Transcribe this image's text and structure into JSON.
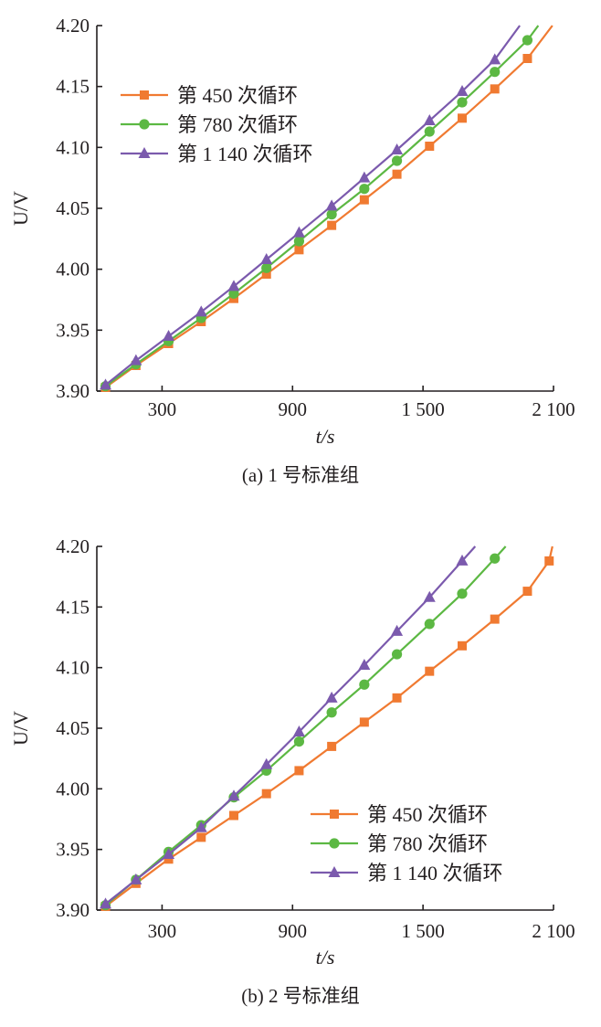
{
  "chart_data": [
    {
      "type": "line",
      "caption": "(a) 1 号标准组",
      "xlabel": "t/s",
      "ylabel": "U/V",
      "xlim": [
        0,
        2100
      ],
      "ylim": [
        3.9,
        4.2
      ],
      "xticks": [
        300,
        900,
        1500,
        2100
      ],
      "xtick_labels": [
        "300",
        "900",
        "1 500",
        "2 100"
      ],
      "yticks": [
        3.9,
        3.95,
        4.0,
        4.05,
        4.1,
        4.15,
        4.2
      ],
      "ytick_labels": [
        "3.90",
        "3.95",
        "4.00",
        "4.05",
        "4.10",
        "4.15",
        "4.20"
      ],
      "legend_position": "top-left",
      "series": [
        {
          "name": "第 450 次循环",
          "marker": "square",
          "color": "#f07a31",
          "x": [
            40,
            180,
            330,
            480,
            630,
            780,
            930,
            1080,
            1230,
            1380,
            1530,
            1680,
            1830,
            1980
          ],
          "y": [
            3.903,
            3.921,
            3.939,
            3.957,
            3.976,
            3.996,
            4.016,
            4.036,
            4.057,
            4.078,
            4.101,
            4.124,
            4.148,
            4.173
          ],
          "line_end": [
            2095,
            4.2
          ]
        },
        {
          "name": "第 780 次循环",
          "marker": "circle",
          "color": "#5cb843",
          "x": [
            40,
            180,
            330,
            480,
            630,
            780,
            930,
            1080,
            1230,
            1380,
            1530,
            1680,
            1830,
            1980
          ],
          "y": [
            3.904,
            3.922,
            3.941,
            3.96,
            3.98,
            4.001,
            4.023,
            4.045,
            4.066,
            4.089,
            4.113,
            4.137,
            4.162,
            4.188
          ],
          "line_end": [
            2030,
            4.2
          ]
        },
        {
          "name": "第 1 140 次循环",
          "marker": "triangle",
          "color": "#7b5aad",
          "x": [
            40,
            180,
            330,
            480,
            630,
            780,
            930,
            1080,
            1230,
            1380,
            1530,
            1680,
            1830
          ],
          "y": [
            3.905,
            3.925,
            3.945,
            3.965,
            3.986,
            4.008,
            4.03,
            4.052,
            4.075,
            4.098,
            4.122,
            4.146,
            4.172
          ],
          "line_end": [
            1945,
            4.2
          ]
        }
      ]
    },
    {
      "type": "line",
      "caption": "(b) 2 号标准组",
      "xlabel": "t/s",
      "ylabel": "U/V",
      "xlim": [
        0,
        2100
      ],
      "ylim": [
        3.9,
        4.2
      ],
      "xticks": [
        300,
        900,
        1500,
        2100
      ],
      "xtick_labels": [
        "300",
        "900",
        "1 500",
        "2 100"
      ],
      "yticks": [
        3.9,
        3.95,
        4.0,
        4.05,
        4.1,
        4.15,
        4.2
      ],
      "ytick_labels": [
        "3.90",
        "3.95",
        "4.00",
        "4.05",
        "4.10",
        "4.15",
        "4.20"
      ],
      "legend_position": "bottom-right",
      "series": [
        {
          "name": "第 450 次循环",
          "marker": "square",
          "color": "#f07a31",
          "x": [
            40,
            180,
            330,
            480,
            630,
            780,
            930,
            1080,
            1230,
            1380,
            1530,
            1680,
            1830,
            1980,
            2080
          ],
          "y": [
            3.903,
            3.922,
            3.942,
            3.96,
            3.978,
            3.996,
            4.015,
            4.035,
            4.055,
            4.075,
            4.097,
            4.118,
            4.14,
            4.163,
            4.188
          ],
          "line_end": [
            2095,
            4.2
          ]
        },
        {
          "name": "第 780 次循环",
          "marker": "circle",
          "color": "#5cb843",
          "x": [
            40,
            180,
            330,
            480,
            630,
            780,
            930,
            1080,
            1230,
            1380,
            1530,
            1680,
            1830
          ],
          "y": [
            3.904,
            3.925,
            3.948,
            3.97,
            3.993,
            4.015,
            4.039,
            4.063,
            4.086,
            4.111,
            4.136,
            4.161,
            4.19
          ],
          "line_end": [
            1880,
            4.2
          ]
        },
        {
          "name": "第 1 140 次循环",
          "marker": "triangle",
          "color": "#7b5aad",
          "x": [
            40,
            180,
            330,
            480,
            630,
            780,
            930,
            1080,
            1230,
            1380,
            1530,
            1680
          ],
          "y": [
            3.905,
            3.925,
            3.946,
            3.968,
            3.994,
            4.02,
            4.047,
            4.075,
            4.102,
            4.13,
            4.158,
            4.188
          ],
          "line_end": [
            1740,
            4.2
          ]
        }
      ]
    }
  ]
}
